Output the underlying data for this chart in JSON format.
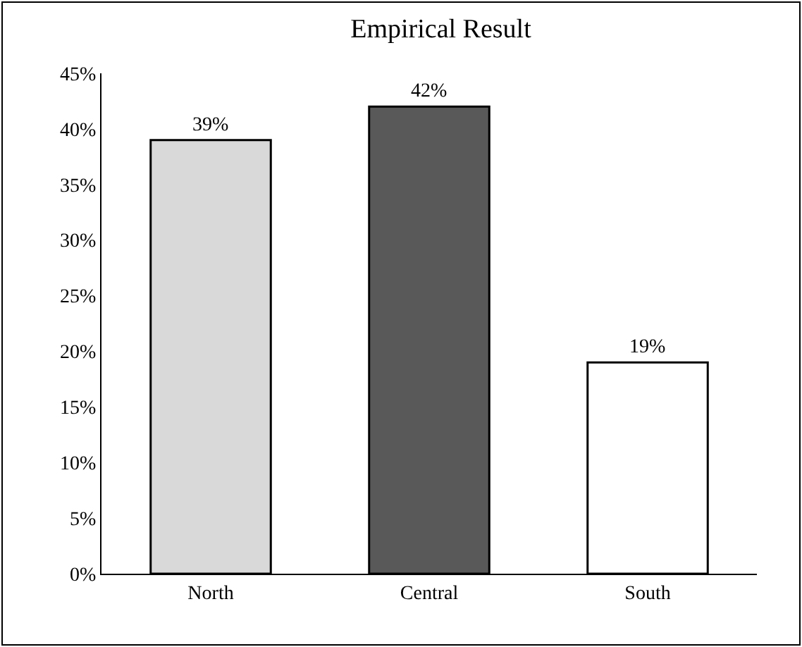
{
  "chart_data": {
    "type": "bar",
    "title": "Empirical Result",
    "categories": [
      "North",
      "Central",
      "South"
    ],
    "values": [
      39,
      42,
      19
    ],
    "colors": [
      "#d9d9d9",
      "#595959",
      "#ffffff"
    ],
    "value_labels": [
      "39%",
      "42%",
      "19%"
    ],
    "ylim": [
      0,
      45
    ],
    "yticks": [
      {
        "value": 0,
        "label": "0%"
      },
      {
        "value": 5,
        "label": "5%"
      },
      {
        "value": 10,
        "label": "10%"
      },
      {
        "value": 15,
        "label": "15%"
      },
      {
        "value": 20,
        "label": "20%"
      },
      {
        "value": 25,
        "label": "25%"
      },
      {
        "value": 30,
        "label": "30%"
      },
      {
        "value": 35,
        "label": "35%"
      },
      {
        "value": 40,
        "label": "40%"
      },
      {
        "value": 45,
        "label": "45%"
      }
    ],
    "grid": false
  }
}
